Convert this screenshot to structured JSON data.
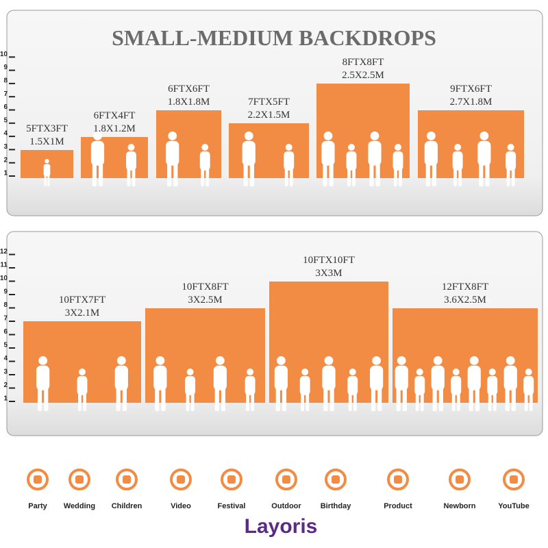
{
  "title": "SMALL-MEDIUM BACKDROPS",
  "panels": [
    {
      "ruler": [
        1,
        2,
        3,
        4,
        5,
        6,
        7,
        8,
        9,
        10
      ],
      "backdrops": [
        {
          "size": "5FTX3FT",
          "metric": "1.5X1M"
        },
        {
          "size": "6FTX4FT",
          "metric": "1.8X1.2M"
        },
        {
          "size": "6FTX6FT",
          "metric": "1.8X1.8M"
        },
        {
          "size": "7FTX5FT",
          "metric": "2.2X1.5M"
        },
        {
          "size": "8FTX8FT",
          "metric": "2.5X2.5M"
        },
        {
          "size": "9FTX6FT",
          "metric": "2.7X1.8M"
        }
      ]
    },
    {
      "ruler": [
        1,
        2,
        3,
        4,
        5,
        6,
        7,
        8,
        9,
        10,
        11,
        12
      ],
      "backdrops": [
        {
          "size": "10FTX7FT",
          "metric": "3X2.1M"
        },
        {
          "size": "10FTX8FT",
          "metric": "3X2.5M"
        },
        {
          "size": "10FTX10FT",
          "metric": "3X3M"
        },
        {
          "size": "12FTX8FT",
          "metric": "3.6X2.5M"
        }
      ]
    }
  ],
  "watermark": "layoris",
  "uses": [
    "Party",
    "Wedding",
    "Children",
    "Video",
    "Festival",
    "Outdoor",
    "Birthday",
    "Product",
    "Newborn",
    "YouTube"
  ],
  "brand": "Layoris"
}
